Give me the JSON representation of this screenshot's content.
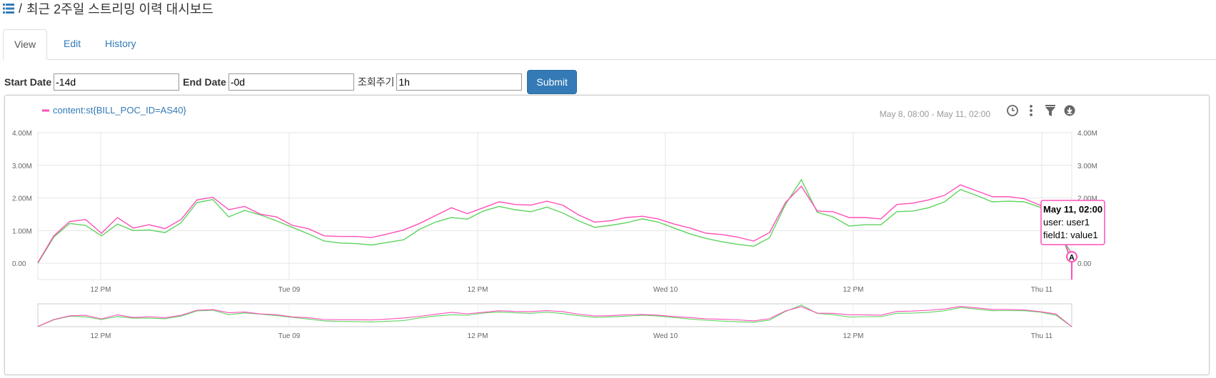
{
  "page": {
    "title": "최근 2주일 스트리밍 이력 대시보드",
    "separator": "/"
  },
  "tabs": [
    {
      "label": "View",
      "active": true
    },
    {
      "label": "Edit",
      "active": false
    },
    {
      "label": "History",
      "active": false
    }
  ],
  "form": {
    "start_label": "Start Date",
    "start_value": "-14d",
    "end_label": "End Date",
    "end_value": "-0d",
    "period_label": "조회주기",
    "period_value": "1h",
    "submit_label": "Submit"
  },
  "chart_header": {
    "legend_label": "content:st{BILL_POC_ID=AS40}",
    "legend_color": "#ff4fb8",
    "range_text": "May 8, 08:00 - May 11, 02:00",
    "icons": [
      "clock-icon",
      "kebab-menu-icon",
      "filter-icon",
      "download-icon"
    ]
  },
  "tooltip": {
    "title": "May 11, 02:00",
    "line1": "user: user1",
    "line2": "field1: value1",
    "annotation_letter": "A"
  },
  "chart_data": {
    "type": "line",
    "x_ticks": [
      "12 PM",
      "Tue 09",
      "12 PM",
      "Wed 10",
      "12 PM",
      "Thu 11"
    ],
    "y_ticks": [
      "4.00M",
      "3.00M",
      "2.00M",
      "1.00M",
      "0.00"
    ],
    "ylim": [
      -0.5,
      4.0
    ],
    "y_unit": "M",
    "grid": true,
    "navigator": true,
    "colors": {
      "primary": "#ff4fb8",
      "secondary": "#5fd35f"
    },
    "series": [
      {
        "name": "content:st{BILL_POC_ID=AS40}",
        "values": [
          0.02,
          0.84,
          1.28,
          1.34,
          0.92,
          1.4,
          1.08,
          1.18,
          1.06,
          1.34,
          1.94,
          2.02,
          1.64,
          1.74,
          1.5,
          1.42,
          1.16,
          1.06,
          0.84,
          0.82,
          0.82,
          0.79,
          0.9,
          1.02,
          1.22,
          1.46,
          1.7,
          1.52,
          1.7,
          1.88,
          1.8,
          1.78,
          1.9,
          1.78,
          1.48,
          1.26,
          1.3,
          1.4,
          1.44,
          1.36,
          1.2,
          1.08,
          0.92,
          0.88,
          0.8,
          0.68,
          0.94,
          1.86,
          2.36,
          1.6,
          1.58,
          1.4,
          1.4,
          1.36,
          1.8,
          1.84,
          1.94,
          2.08,
          2.4,
          2.22,
          2.04,
          2.04,
          1.98,
          1.78,
          1.5,
          0.0
        ]
      },
      {
        "name": "",
        "values": [
          0.0,
          0.8,
          1.22,
          1.16,
          0.84,
          1.2,
          1.0,
          1.02,
          0.94,
          1.24,
          1.86,
          1.95,
          1.42,
          1.62,
          1.48,
          1.3,
          1.1,
          0.9,
          0.68,
          0.62,
          0.6,
          0.56,
          0.64,
          0.72,
          1.04,
          1.26,
          1.4,
          1.35,
          1.6,
          1.74,
          1.64,
          1.58,
          1.72,
          1.54,
          1.3,
          1.1,
          1.16,
          1.24,
          1.36,
          1.26,
          1.08,
          0.9,
          0.76,
          0.66,
          0.58,
          0.52,
          0.78,
          1.8,
          2.56,
          1.56,
          1.42,
          1.14,
          1.18,
          1.18,
          1.58,
          1.6,
          1.7,
          1.88,
          2.26,
          2.08,
          1.88,
          1.9,
          1.88,
          1.72,
          1.36,
          0.0
        ]
      }
    ]
  }
}
